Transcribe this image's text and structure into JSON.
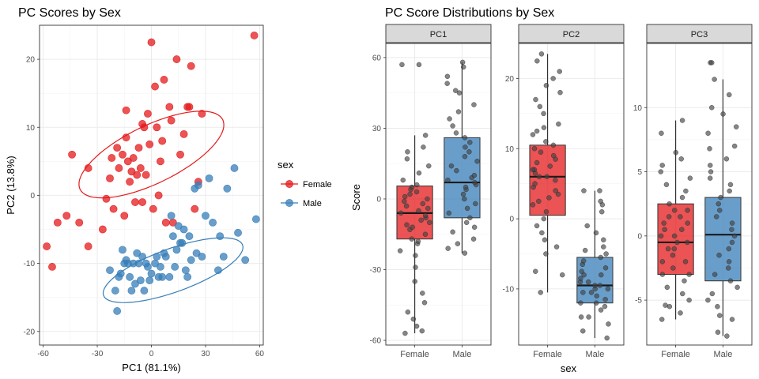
{
  "colors": {
    "female": "#e41a1c",
    "male": "#377eb8",
    "strip_bg": "#d9d9d9",
    "grid": "#ebebeb",
    "axis_text": "#4d4d4d",
    "point_gray": "#444444"
  },
  "chart_data": [
    {
      "type": "scatter",
      "title": "PC Scores by Sex",
      "xlabel": "PC1 (81.1%)",
      "ylabel": "PC2 (13.8%)",
      "xlim": [
        -62,
        62
      ],
      "ylim": [
        -22,
        25
      ],
      "xticks": [
        -60,
        -30,
        0,
        30,
        60
      ],
      "yticks": [
        -20,
        -10,
        0,
        10,
        20
      ],
      "grid": true,
      "legend": {
        "title": "sex",
        "position": "right",
        "entries": [
          "Female",
          "Male"
        ]
      },
      "series": [
        {
          "name": "Female",
          "ellipse": {
            "center": [
              0,
              6
            ],
            "rx": 44,
            "ry": 16,
            "angle_deg": 26
          },
          "points": [
            [
              -58,
              -7.5
            ],
            [
              -55,
              -10.5
            ],
            [
              -52,
              -4
            ],
            [
              -47,
              -3
            ],
            [
              -44,
              6
            ],
            [
              -40,
              -4
            ],
            [
              -35,
              -7.5
            ],
            [
              -35,
              4
            ],
            [
              -27,
              -5
            ],
            [
              -25,
              -0.5
            ],
            [
              -23,
              2.5
            ],
            [
              -22,
              5.5
            ],
            [
              -21,
              -2
            ],
            [
              -19,
              7
            ],
            [
              -18,
              4
            ],
            [
              -16,
              6
            ],
            [
              -15,
              -3
            ],
            [
              -14,
              12.5
            ],
            [
              -14,
              8.5
            ],
            [
              -13,
              5
            ],
            [
              -12,
              2
            ],
            [
              -11,
              3.5
            ],
            [
              -10,
              5.5
            ],
            [
              -9,
              -1
            ],
            [
              -8,
              3
            ],
            [
              -7,
              7
            ],
            [
              -6,
              4
            ],
            [
              -5,
              10.5
            ],
            [
              -5,
              -1
            ],
            [
              -4,
              10
            ],
            [
              -3,
              3
            ],
            [
              -2,
              12
            ],
            [
              -1,
              7.5
            ],
            [
              0,
              22.5
            ],
            [
              1,
              -2
            ],
            [
              2,
              16
            ],
            [
              3,
              10
            ],
            [
              4,
              0
            ],
            [
              5,
              5
            ],
            [
              6,
              8
            ],
            [
              7,
              17
            ],
            [
              8,
              -4
            ],
            [
              10,
              13
            ],
            [
              11,
              11
            ],
            [
              12,
              -4
            ],
            [
              14,
              20
            ],
            [
              16,
              6
            ],
            [
              18,
              9
            ],
            [
              20,
              13
            ],
            [
              21,
              13
            ],
            [
              22,
              19
            ],
            [
              24,
              -2
            ],
            [
              26,
              2
            ],
            [
              28,
              12
            ],
            [
              57,
              23.5
            ]
          ]
        },
        {
          "name": "Male",
          "ellipse": {
            "center": [
              12,
              -11
            ],
            "rx": 41,
            "ry": 12,
            "angle_deg": 20
          },
          "points": [
            [
              -23,
              -11
            ],
            [
              -20,
              -14
            ],
            [
              -19,
              -17
            ],
            [
              -18,
              -12
            ],
            [
              -17,
              -11.5
            ],
            [
              -16,
              -8
            ],
            [
              -15,
              -10
            ],
            [
              -14,
              -9.5
            ],
            [
              -13,
              -10
            ],
            [
              -12,
              -12
            ],
            [
              -11,
              -14
            ],
            [
              -10,
              -10
            ],
            [
              -9,
              -13
            ],
            [
              -8,
              -8.5
            ],
            [
              -7,
              -10
            ],
            [
              -6,
              -12.5
            ],
            [
              -5,
              -9
            ],
            [
              -4,
              -14
            ],
            [
              -3,
              -10
            ],
            [
              -2,
              -10.5
            ],
            [
              -1,
              -12.5
            ],
            [
              0,
              -11.5
            ],
            [
              2,
              -10
            ],
            [
              3,
              -9
            ],
            [
              4,
              -12
            ],
            [
              5,
              -10.5
            ],
            [
              6,
              -12
            ],
            [
              7,
              -8.5
            ],
            [
              8,
              -9
            ],
            [
              10,
              -12
            ],
            [
              11,
              -3
            ],
            [
              12,
              -6
            ],
            [
              13,
              -10.5
            ],
            [
              14,
              -8
            ],
            [
              15,
              -4.5
            ],
            [
              16,
              -7
            ],
            [
              17,
              -7
            ],
            [
              18,
              -5
            ],
            [
              19,
              -11
            ],
            [
              20,
              -12
            ],
            [
              21,
              -6
            ],
            [
              22,
              -9.5
            ],
            [
              24,
              1
            ],
            [
              25,
              -8.5
            ],
            [
              26,
              1.5
            ],
            [
              28,
              -9
            ],
            [
              30,
              -3
            ],
            [
              32,
              2.5
            ],
            [
              34,
              -4
            ],
            [
              37,
              -11
            ],
            [
              38,
              -6
            ],
            [
              40,
              -9
            ],
            [
              42,
              1
            ],
            [
              46,
              4
            ],
            [
              48,
              -5.5
            ],
            [
              52,
              -9.5
            ],
            [
              58,
              -3.5
            ]
          ]
        }
      ]
    },
    {
      "type": "box",
      "title": "PC Score Distributions by Sex",
      "xlabel": "sex",
      "ylabel": "Score",
      "categories": [
        "Female",
        "Male"
      ],
      "grid": true,
      "facets": [
        {
          "name": "PC1",
          "ylim": [
            -62,
            66
          ],
          "yticks": [
            -60,
            -30,
            0,
            30,
            60
          ],
          "boxes": [
            {
              "group": "Female",
              "whisker_low": -57,
              "q1": -17,
              "median": -6,
              "q3": 5.5,
              "whisker_high": 27
            },
            {
              "group": "Male",
              "whisker_low": -23,
              "q1": -8,
              "median": 7,
              "q3": 26,
              "whisker_high": 58
            }
          ],
          "points": {
            "Female": [
              -57,
              -56,
              -54,
              -51,
              -48,
              -44,
              -40,
              -35,
              -29,
              -24,
              -22,
              -19,
              -18,
              -17,
              -15,
              -13,
              -12,
              -11,
              -10,
              -9,
              -8,
              -7,
              -6,
              -5,
              -4,
              -3,
              -2,
              -1,
              0,
              1,
              2,
              3,
              4,
              5,
              6,
              8,
              11,
              14,
              17,
              20,
              22,
              27,
              57,
              57
            ],
            "Male": [
              -23,
              -21,
              -19,
              -17,
              -14,
              -12,
              -10,
              -8,
              -6,
              -4,
              -2,
              0,
              2,
              4,
              5,
              6,
              7,
              8,
              9,
              10,
              12,
              14,
              16,
              18,
              20,
              22,
              24,
              26,
              28,
              31,
              34,
              37,
              40,
              45,
              46,
              49,
              52,
              56,
              58
            ]
          }
        },
        {
          "name": "PC2",
          "ylim": [
            -18,
            25
          ],
          "yticks": [
            -10,
            0,
            10,
            20
          ],
          "boxes": [
            {
              "group": "Female",
              "whisker_low": -10.5,
              "q1": 0.5,
              "median": 6,
              "q3": 10.5,
              "whisker_high": 23.5
            },
            {
              "group": "Male",
              "whisker_low": -17,
              "q1": -12,
              "median": -9.5,
              "q3": -5.5,
              "whisker_high": 4
            }
          ],
          "points": {
            "Female": [
              -10.5,
              -8,
              -7.5,
              -5,
              -4,
              -3,
              -2,
              -1,
              0,
              1,
              2,
              2.5,
              3,
              3.5,
              4,
              4.5,
              5,
              5.5,
              6,
              6,
              6.5,
              7,
              7,
              7.5,
              8,
              8.5,
              9,
              9.5,
              10,
              10.5,
              11,
              12,
              12.5,
              13,
              13.5,
              15,
              16,
              17,
              18,
              19,
              20,
              21,
              22.5,
              23.5
            ],
            "Male": [
              -17,
              -16,
              -15,
              -14,
              -14,
              -13,
              -12.5,
              -12,
              -12,
              -11.5,
              -11,
              -10.5,
              -10.5,
              -10,
              -10,
              -9.5,
              -9.5,
              -9,
              -9,
              -8.5,
              -8,
              -8,
              -7.5,
              -7,
              -6.5,
              -6,
              -5.5,
              -5,
              -4.5,
              -4,
              -3,
              -2,
              -1,
              1,
              2,
              2.5,
              4,
              4
            ]
          }
        },
        {
          "name": "PC3",
          "ylim": [
            -8.5,
            15
          ],
          "yticks": [
            -5,
            0,
            5,
            10
          ],
          "boxes": [
            {
              "group": "Female",
              "whisker_low": -6.5,
              "q1": -3,
              "median": -0.5,
              "q3": 2.5,
              "whisker_high": 9
            },
            {
              "group": "Male",
              "whisker_low": -7.8,
              "q1": -3.5,
              "median": 0.1,
              "q3": 3,
              "whisker_high": 12.2
            }
          ],
          "points": {
            "Female": [
              -6.5,
              -6,
              -5.5,
              -5.4,
              -5,
              -4.5,
              -4,
              -3.5,
              -3,
              -3,
              -2.5,
              -2,
              -2,
              -1.5,
              -1,
              -1,
              -0.5,
              -0.5,
              0,
              0,
              0.5,
              0.5,
              1,
              1,
              1.5,
              1.5,
              2,
              2,
              2.5,
              3,
              3.5,
              4,
              4.5,
              5,
              5.5,
              6,
              6.5,
              8,
              9
            ],
            "Male": [
              -7.8,
              -7.5,
              -6.5,
              -6.2,
              -5.5,
              -5,
              -4.5,
              -4,
              -3.5,
              -3,
              -2.5,
              -2,
              -1.5,
              -1,
              -0.5,
              0,
              0.5,
              1,
              1.5,
              2,
              2.5,
              3,
              3.5,
              4,
              4.5,
              5,
              5.5,
              6,
              6.8,
              7,
              8,
              8.5,
              9.5,
              10,
              11,
              12.2,
              13.5,
              13.5
            ]
          }
        }
      ]
    }
  ]
}
